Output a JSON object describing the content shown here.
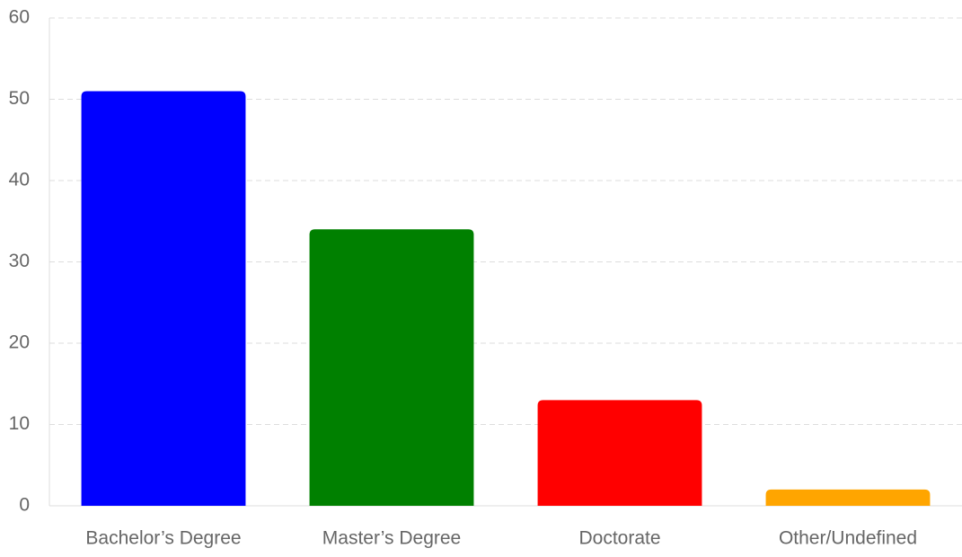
{
  "chart_data": {
    "type": "bar",
    "categories": [
      "Bachelor’s Degree",
      "Master’s Degree",
      "Doctorate",
      "Other/Undefined"
    ],
    "values": [
      51,
      34,
      13,
      2
    ],
    "colors": [
      "#0000ff",
      "#008000",
      "#ff0000",
      "#ffa500"
    ],
    "ylim": [
      0,
      60
    ],
    "yticks": [
      0,
      10,
      20,
      30,
      40,
      50,
      60
    ],
    "grid": true
  }
}
